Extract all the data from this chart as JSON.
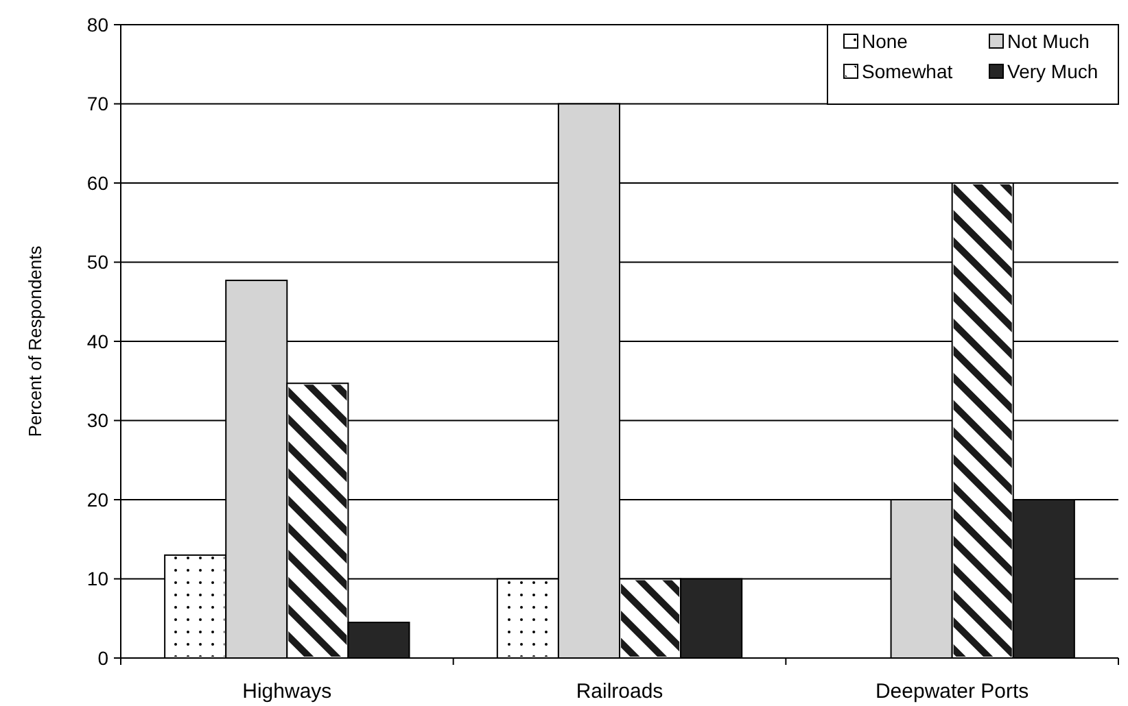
{
  "chart_data": {
    "type": "bar",
    "ylabel": "Percent of Respondents",
    "categories": [
      "Highways",
      "Railroads",
      "Deepwater Ports"
    ],
    "series": [
      {
        "name": "None",
        "color": "#ffffff",
        "values": [
          13,
          10,
          null
        ]
      },
      {
        "name": "Not Much",
        "color": "#d4d4d4",
        "values": [
          47.7,
          70,
          20
        ]
      },
      {
        "name": "Somewhat",
        "color": "#ffffff",
        "values": [
          34.7,
          10,
          60
        ]
      },
      {
        "name": "Very Much",
        "color": "#262626",
        "values": [
          4.5,
          10,
          20
        ]
      }
    ],
    "ylim": [
      0,
      80
    ],
    "yticks": [
      0,
      10,
      20,
      30,
      40,
      50,
      60,
      70,
      80
    ],
    "grid": "y",
    "legend": "top right"
  }
}
